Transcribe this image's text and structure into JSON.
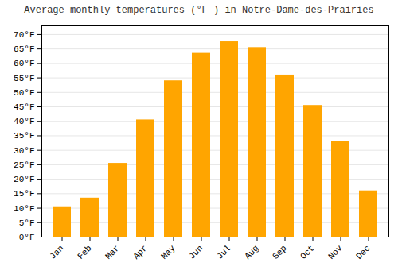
{
  "chart_data": {
    "type": "bar",
    "title": "Average monthly temperatures (°F ) in Notre-Dame-des-Prairies",
    "categories": [
      "Jan",
      "Feb",
      "Mar",
      "Apr",
      "May",
      "Jun",
      "Jul",
      "Aug",
      "Sep",
      "Oct",
      "Nov",
      "Dec"
    ],
    "values": [
      10.5,
      13.5,
      25.5,
      40.5,
      54,
      63.5,
      67.5,
      65.5,
      56,
      45.5,
      33,
      16
    ],
    "color": "#FFA500",
    "ylim": [
      0,
      73
    ],
    "yticks": [
      {
        "value": 0,
        "label": "0°F"
      },
      {
        "value": 5,
        "label": "5°F"
      },
      {
        "value": 10,
        "label": "10°F"
      },
      {
        "value": 15,
        "label": "15°F"
      },
      {
        "value": 20,
        "label": "20°F"
      },
      {
        "value": 25,
        "label": "25°F"
      },
      {
        "value": 30,
        "label": "30°F"
      },
      {
        "value": 35,
        "label": "35°F"
      },
      {
        "value": 40,
        "label": "40°F"
      },
      {
        "value": 45,
        "label": "45°F"
      },
      {
        "value": 50,
        "label": "50°F"
      },
      {
        "value": 55,
        "label": "55°F"
      },
      {
        "value": 60,
        "label": "60°F"
      },
      {
        "value": 65,
        "label": "65°F"
      },
      {
        "value": 70,
        "label": "70°F"
      }
    ],
    "grid": true
  }
}
